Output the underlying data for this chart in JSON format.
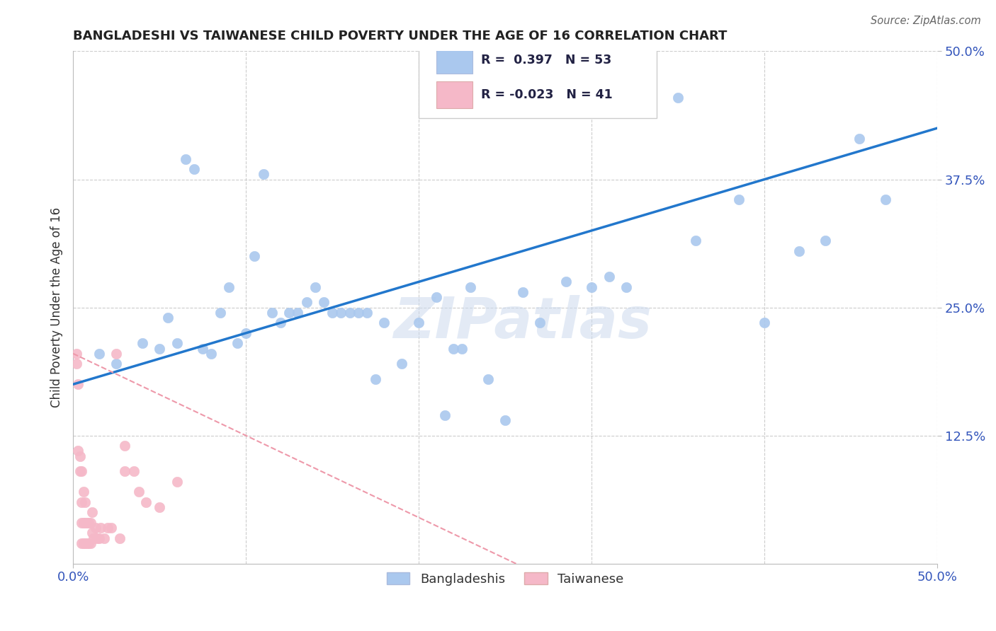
{
  "title": "BANGLADESHI VS TAIWANESE CHILD POVERTY UNDER THE AGE OF 16 CORRELATION CHART",
  "source": "Source: ZipAtlas.com",
  "ylabel": "Child Poverty Under the Age of 16",
  "xlim": [
    0.0,
    0.5
  ],
  "ylim": [
    0.0,
    0.5
  ],
  "watermark": "ZIPatlas",
  "blue_color": "#aac8ee",
  "pink_color": "#f5b8c8",
  "blue_line_color": "#2277cc",
  "pink_line_color": "#ee99aa",
  "grid_color": "#cccccc",
  "background_color": "#ffffff",
  "title_color": "#222222",
  "ylabel_color": "#333333",
  "tick_color": "#3355bb",
  "blue_intercept": 0.175,
  "blue_slope": 0.5,
  "pink_intercept": 0.205,
  "pink_slope": -0.8,
  "blue_points_x": [
    0.015,
    0.025,
    0.04,
    0.05,
    0.055,
    0.06,
    0.065,
    0.07,
    0.075,
    0.08,
    0.085,
    0.09,
    0.095,
    0.1,
    0.105,
    0.11,
    0.115,
    0.12,
    0.125,
    0.13,
    0.135,
    0.14,
    0.145,
    0.15,
    0.155,
    0.16,
    0.165,
    0.17,
    0.175,
    0.18,
    0.19,
    0.2,
    0.21,
    0.215,
    0.22,
    0.225,
    0.23,
    0.24,
    0.25,
    0.26,
    0.27,
    0.285,
    0.3,
    0.31,
    0.32,
    0.35,
    0.36,
    0.385,
    0.4,
    0.42,
    0.435,
    0.455,
    0.47
  ],
  "blue_points_y": [
    0.205,
    0.195,
    0.215,
    0.21,
    0.24,
    0.215,
    0.395,
    0.385,
    0.21,
    0.205,
    0.245,
    0.27,
    0.215,
    0.225,
    0.3,
    0.38,
    0.245,
    0.235,
    0.245,
    0.245,
    0.255,
    0.27,
    0.255,
    0.245,
    0.245,
    0.245,
    0.245,
    0.245,
    0.18,
    0.235,
    0.195,
    0.235,
    0.26,
    0.145,
    0.21,
    0.21,
    0.27,
    0.18,
    0.14,
    0.265,
    0.235,
    0.275,
    0.27,
    0.28,
    0.27,
    0.455,
    0.315,
    0.355,
    0.235,
    0.305,
    0.315,
    0.415,
    0.355
  ],
  "pink_points_x": [
    0.002,
    0.002,
    0.003,
    0.003,
    0.004,
    0.004,
    0.005,
    0.005,
    0.005,
    0.005,
    0.006,
    0.006,
    0.006,
    0.007,
    0.007,
    0.007,
    0.008,
    0.008,
    0.009,
    0.009,
    0.01,
    0.01,
    0.011,
    0.011,
    0.012,
    0.013,
    0.014,
    0.015,
    0.016,
    0.018,
    0.02,
    0.022,
    0.025,
    0.027,
    0.03,
    0.03,
    0.035,
    0.038,
    0.042,
    0.05,
    0.06
  ],
  "pink_points_y": [
    0.195,
    0.205,
    0.11,
    0.175,
    0.09,
    0.105,
    0.02,
    0.04,
    0.06,
    0.09,
    0.02,
    0.04,
    0.07,
    0.02,
    0.04,
    0.06,
    0.02,
    0.04,
    0.02,
    0.04,
    0.02,
    0.04,
    0.03,
    0.05,
    0.025,
    0.035,
    0.025,
    0.025,
    0.035,
    0.025,
    0.035,
    0.035,
    0.205,
    0.025,
    0.09,
    0.115,
    0.09,
    0.07,
    0.06,
    0.055,
    0.08
  ]
}
